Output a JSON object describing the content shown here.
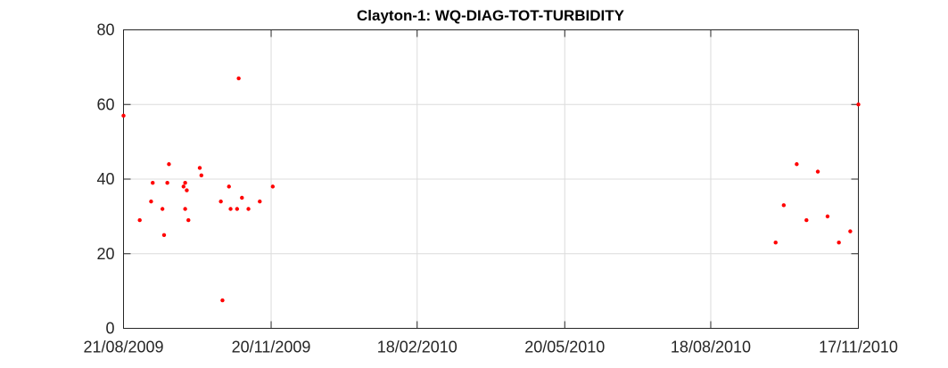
{
  "chart_data": {
    "type": "scatter",
    "title": "Clayton-1: WQ-DIAG-TOT-TURBIDITY",
    "xlabel": "",
    "ylabel": "",
    "x_axis_type": "date",
    "xlim": [
      "2009-08-21",
      "2010-11-17"
    ],
    "ylim": [
      0,
      80
    ],
    "x_ticks": [
      "21/08/2009",
      "20/11/2009",
      "18/02/2010",
      "20/05/2010",
      "18/08/2010",
      "17/11/2010"
    ],
    "x_tick_dates": [
      "2009-08-21",
      "2009-11-20",
      "2010-02-18",
      "2010-05-20",
      "2010-08-18",
      "2010-11-17"
    ],
    "y_ticks": [
      "0",
      "20",
      "40",
      "60",
      "80"
    ],
    "grid": true,
    "marker_color": "#ff0000",
    "series": [
      {
        "points": [
          {
            "x": "2009-08-21",
            "y": 57
          },
          {
            "x": "2009-08-31",
            "y": 29
          },
          {
            "x": "2009-09-07",
            "y": 34
          },
          {
            "x": "2009-09-08",
            "y": 39
          },
          {
            "x": "2009-09-14",
            "y": 32
          },
          {
            "x": "2009-09-15",
            "y": 25
          },
          {
            "x": "2009-09-17",
            "y": 39
          },
          {
            "x": "2009-09-18",
            "y": 44
          },
          {
            "x": "2009-09-27",
            "y": 38
          },
          {
            "x": "2009-09-28",
            "y": 32
          },
          {
            "x": "2009-09-28",
            "y": 39
          },
          {
            "x": "2009-09-29",
            "y": 37
          },
          {
            "x": "2009-09-30",
            "y": 29
          },
          {
            "x": "2009-10-07",
            "y": 43
          },
          {
            "x": "2009-10-08",
            "y": 41
          },
          {
            "x": "2009-10-20",
            "y": 34
          },
          {
            "x": "2009-10-21",
            "y": 7.5
          },
          {
            "x": "2009-10-25",
            "y": 38
          },
          {
            "x": "2009-10-26",
            "y": 32
          },
          {
            "x": "2009-10-30",
            "y": 32
          },
          {
            "x": "2009-10-31",
            "y": 67
          },
          {
            "x": "2009-11-02",
            "y": 35
          },
          {
            "x": "2009-11-06",
            "y": 32
          },
          {
            "x": "2009-11-13",
            "y": 34
          },
          {
            "x": "2009-11-21",
            "y": 38
          },
          {
            "x": "2010-09-27",
            "y": 23
          },
          {
            "x": "2010-10-02",
            "y": 33
          },
          {
            "x": "2010-10-10",
            "y": 44
          },
          {
            "x": "2010-10-16",
            "y": 29
          },
          {
            "x": "2010-10-23",
            "y": 42
          },
          {
            "x": "2010-10-29",
            "y": 30
          },
          {
            "x": "2010-11-05",
            "y": 23
          },
          {
            "x": "2010-11-12",
            "y": 26
          },
          {
            "x": "2010-11-17",
            "y": 60
          }
        ]
      }
    ]
  }
}
